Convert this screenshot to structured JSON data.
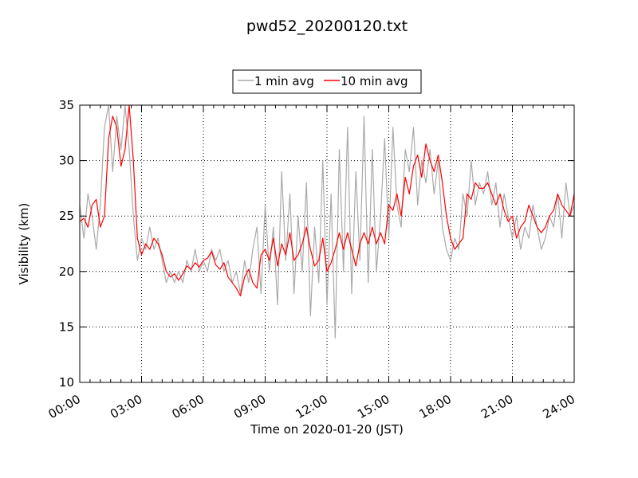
{
  "chart_data": {
    "type": "line",
    "title": "pwd52_20200120.txt",
    "xlabel": "Time on 2020-01-20 (JST)",
    "ylabel": "Visibility (km)",
    "x_unit": "hours",
    "xlim": [
      0,
      24
    ],
    "ylim": [
      10,
      35
    ],
    "x_tick_values": [
      0,
      3,
      6,
      9,
      12,
      15,
      18,
      21,
      24
    ],
    "x_tick_labels": [
      "00:00",
      "03:00",
      "06:00",
      "09:00",
      "12:00",
      "15:00",
      "18:00",
      "21:00",
      "24:00"
    ],
    "y_ticks": [
      10,
      15,
      20,
      25,
      30,
      35
    ],
    "grid": true,
    "legend": "top-center",
    "series": [
      {
        "name": "1 min avg",
        "color": "#aaaaaa",
        "x": [
          0,
          0.2,
          0.4,
          0.6,
          0.8,
          1.0,
          1.2,
          1.4,
          1.6,
          1.8,
          2.0,
          2.2,
          2.4,
          2.6,
          2.8,
          3.0,
          3.2,
          3.4,
          3.6,
          3.8,
          4.0,
          4.2,
          4.4,
          4.6,
          4.8,
          5.0,
          5.2,
          5.4,
          5.6,
          5.8,
          6.0,
          6.2,
          6.4,
          6.6,
          6.8,
          7.0,
          7.2,
          7.4,
          7.6,
          7.8,
          8.0,
          8.2,
          8.4,
          8.6,
          8.8,
          9.0,
          9.2,
          9.4,
          9.6,
          9.8,
          10.0,
          10.2,
          10.4,
          10.6,
          10.8,
          11.0,
          11.2,
          11.4,
          11.6,
          11.8,
          12.0,
          12.2,
          12.4,
          12.6,
          12.8,
          13.0,
          13.2,
          13.4,
          13.6,
          13.8,
          14.0,
          14.2,
          14.4,
          14.6,
          14.8,
          15.0,
          15.2,
          15.4,
          15.6,
          15.8,
          16.0,
          16.2,
          16.4,
          16.6,
          16.8,
          17.0,
          17.2,
          17.4,
          17.6,
          17.8,
          18.0,
          18.2,
          18.4,
          18.6,
          18.8,
          19.0,
          19.2,
          19.4,
          19.6,
          19.8,
          20.0,
          20.2,
          20.4,
          20.6,
          20.8,
          21.0,
          21.2,
          21.4,
          21.6,
          21.8,
          22.0,
          22.2,
          22.4,
          22.6,
          22.8,
          23.0,
          23.2,
          23.4,
          23.6,
          23.8,
          24.0
        ],
        "values": [
          26,
          23,
          27,
          25,
          22,
          26,
          33,
          35,
          29,
          34,
          31,
          35,
          31,
          25,
          21,
          23,
          22,
          24,
          22,
          23,
          21,
          19,
          20,
          19,
          20,
          19,
          21,
          20,
          22,
          20,
          21,
          20,
          22,
          21,
          22,
          20,
          21,
          19,
          20,
          18,
          21,
          19,
          22,
          24,
          18,
          26,
          20,
          24,
          17,
          29,
          21,
          27,
          18,
          25,
          20,
          28,
          16,
          24,
          19,
          30,
          17,
          27,
          14,
          31,
          20,
          33,
          18,
          29,
          21,
          34,
          19,
          31,
          20,
          25,
          32,
          23,
          33,
          26,
          24,
          31,
          29,
          33,
          26,
          30,
          28,
          31,
          27,
          30,
          24,
          22,
          21,
          23,
          22,
          27,
          25,
          30,
          26,
          28,
          27,
          29,
          26,
          28,
          24,
          27,
          25,
          23,
          25,
          22,
          24,
          23,
          26,
          24,
          22,
          23,
          25,
          24,
          27,
          23,
          28,
          25,
          26
        ]
      },
      {
        "name": "10 min avg",
        "color": "#ff0000",
        "x": [
          0,
          0.2,
          0.4,
          0.6,
          0.8,
          1.0,
          1.2,
          1.4,
          1.6,
          1.8,
          2.0,
          2.2,
          2.4,
          2.6,
          2.8,
          3.0,
          3.2,
          3.4,
          3.6,
          3.8,
          4.0,
          4.2,
          4.4,
          4.6,
          4.8,
          5.0,
          5.2,
          5.4,
          5.6,
          5.8,
          6.0,
          6.2,
          6.4,
          6.6,
          6.8,
          7.0,
          7.2,
          7.4,
          7.6,
          7.8,
          8.0,
          8.2,
          8.4,
          8.6,
          8.8,
          9.0,
          9.2,
          9.4,
          9.6,
          9.8,
          10.0,
          10.2,
          10.4,
          10.6,
          10.8,
          11.0,
          11.2,
          11.4,
          11.6,
          11.8,
          12.0,
          12.2,
          12.4,
          12.6,
          12.8,
          13.0,
          13.2,
          13.4,
          13.6,
          13.8,
          14.0,
          14.2,
          14.4,
          14.6,
          14.8,
          15.0,
          15.2,
          15.4,
          15.6,
          15.8,
          16.0,
          16.2,
          16.4,
          16.6,
          16.8,
          17.0,
          17.2,
          17.4,
          17.6,
          17.8,
          18.0,
          18.2,
          18.4,
          18.6,
          18.8,
          19.0,
          19.2,
          19.4,
          19.6,
          19.8,
          20.0,
          20.2,
          20.4,
          20.6,
          20.8,
          21.0,
          21.2,
          21.4,
          21.6,
          21.8,
          22.0,
          22.2,
          22.4,
          22.6,
          22.8,
          23.0,
          23.2,
          23.4,
          23.6,
          23.8,
          24.0
        ],
        "values": [
          24.5,
          24.8,
          24.0,
          26.0,
          26.5,
          24.0,
          25.0,
          32.0,
          34.0,
          33.0,
          29.5,
          31.0,
          35.0,
          30.0,
          23.0,
          21.5,
          22.5,
          22.0,
          23.0,
          22.5,
          21.5,
          20.0,
          19.5,
          19.8,
          19.2,
          19.8,
          20.5,
          20.2,
          20.8,
          20.4,
          21.0,
          21.2,
          21.8,
          20.6,
          20.2,
          20.8,
          19.5,
          19.0,
          18.5,
          17.8,
          19.5,
          20.2,
          19.0,
          18.5,
          21.5,
          22.0,
          21.0,
          23.0,
          20.5,
          22.5,
          21.5,
          23.5,
          21.0,
          21.5,
          22.5,
          24.0,
          22.0,
          20.5,
          21.0,
          23.0,
          20.0,
          20.8,
          22.0,
          23.5,
          22.0,
          23.5,
          22.0,
          20.5,
          22.5,
          23.5,
          22.5,
          24.0,
          22.5,
          23.5,
          22.5,
          26.0,
          25.5,
          27.0,
          25.0,
          28.5,
          27.0,
          29.5,
          30.5,
          28.5,
          31.5,
          30.0,
          29.0,
          30.5,
          28.0,
          25.0,
          23.0,
          22.0,
          22.5,
          23.0,
          27.0,
          26.5,
          28.0,
          27.5,
          27.5,
          28.0,
          27.0,
          26.0,
          27.0,
          25.5,
          24.5,
          25.0,
          23.0,
          24.0,
          24.5,
          26.0,
          25.0,
          24.0,
          23.5,
          24.0,
          25.0,
          25.5,
          27.0,
          26.0,
          25.5,
          25.0,
          27.0
        ]
      }
    ]
  }
}
